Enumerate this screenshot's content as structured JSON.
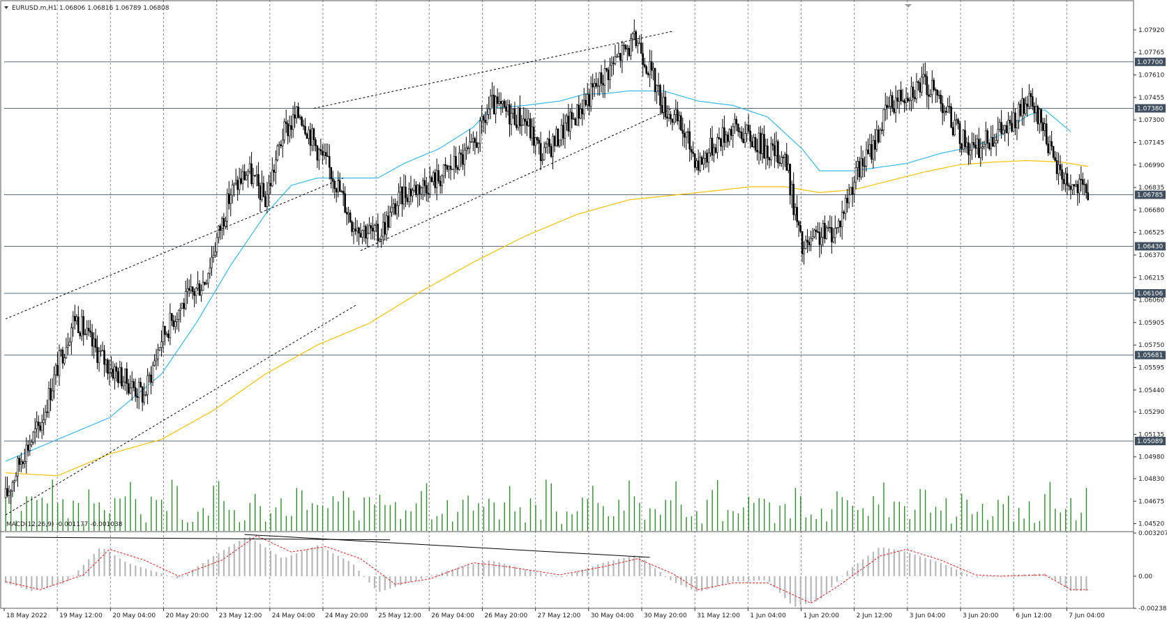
{
  "header": {
    "symbol": "EURUSD.m,H1",
    "ohlc": "1.06806 1.06816 1.06789 1.06808"
  },
  "macd_label": "MACD(12,26,9) -0.001177 -0.001038",
  "colors": {
    "grid": "#8c8c8c",
    "candle": "#000000",
    "ma_fast": "#38b8e8",
    "ma_slow": "#f2c200",
    "volume": "#2e8b2e",
    "level_line": "#5a6a7a",
    "level_tag": "#3f4f60",
    "macd_hist": "#b8b8b8",
    "macd_signal": "#e02020",
    "trendline": "#000000"
  },
  "chart_data": {
    "type": "candlestick",
    "symbol": "EURUSD.m",
    "timeframe": "H1",
    "ylim": [
      1.0447,
      1.0803
    ],
    "price_ticks": [
      "1.07920",
      "1.07765",
      "1.07610",
      "1.07455",
      "1.07300",
      "1.07145",
      "1.06990",
      "1.06835",
      "1.06680",
      "1.06525",
      "1.06370",
      "1.06215",
      "1.06060",
      "1.05905",
      "1.05750",
      "1.05595",
      "1.05440",
      "1.05290",
      "1.05135",
      "1.04980",
      "1.04830",
      "1.04675",
      "1.04520"
    ],
    "levels": [
      "1.07700",
      "1.07380",
      "1.06785",
      "1.06430",
      "1.06106",
      "1.05681",
      "1.05089"
    ],
    "time_labels": [
      "18 May 2022",
      "19 May 12:00",
      "20 May 04:00",
      "20 May 20:00",
      "23 May 12:00",
      "24 May 04:00",
      "24 May 20:00",
      "25 May 12:00",
      "26 May 04:00",
      "26 May 20:00",
      "27 May 12:00",
      "30 May 04:00",
      "30 May 20:00",
      "31 May 12:00",
      "1 Jun 04:00",
      "1 Jun 20:00",
      "2 Jun 12:00",
      "3 Jun 04:00",
      "3 Jun 20:00",
      "6 Jun 12:00",
      "7 Jun 04:00"
    ],
    "anchors": [
      [
        0,
        1.047
      ],
      [
        10,
        1.05
      ],
      [
        20,
        1.052
      ],
      [
        30,
        1.056
      ],
      [
        40,
        1.0595
      ],
      [
        50,
        1.0575
      ],
      [
        60,
        1.056
      ],
      [
        70,
        1.055
      ],
      [
        80,
        1.054
      ],
      [
        90,
        1.058
      ],
      [
        100,
        1.06
      ],
      [
        115,
        1.062
      ],
      [
        130,
        1.068
      ],
      [
        140,
        1.0695
      ],
      [
        150,
        1.0675
      ],
      [
        160,
        1.072
      ],
      [
        170,
        1.0735
      ],
      [
        180,
        1.071
      ],
      [
        190,
        1.069
      ],
      [
        200,
        1.066
      ],
      [
        215,
        1.065
      ],
      [
        230,
        1.068
      ],
      [
        250,
        1.069
      ],
      [
        270,
        1.071
      ],
      [
        280,
        1.074
      ],
      [
        300,
        1.073
      ],
      [
        310,
        1.0705
      ],
      [
        320,
        1.072
      ],
      [
        330,
        1.0735
      ],
      [
        345,
        1.076
      ],
      [
        355,
        1.0775
      ],
      [
        365,
        1.0785
      ],
      [
        370,
        1.077
      ],
      [
        380,
        1.074
      ],
      [
        390,
        1.0725
      ],
      [
        400,
        1.07
      ],
      [
        410,
        1.0715
      ],
      [
        420,
        1.0725
      ],
      [
        430,
        1.0718
      ],
      [
        440,
        1.071
      ],
      [
        450,
        1.0705
      ],
      [
        460,
        1.064
      ],
      [
        470,
        1.065
      ],
      [
        480,
        1.0655
      ],
      [
        490,
        1.069
      ],
      [
        500,
        1.071
      ],
      [
        510,
        1.074
      ],
      [
        520,
        1.075
      ],
      [
        530,
        1.0755
      ],
      [
        540,
        1.0745
      ],
      [
        550,
        1.072
      ],
      [
        560,
        1.0708
      ],
      [
        570,
        1.072
      ],
      [
        580,
        1.0725
      ],
      [
        590,
        1.0742
      ],
      [
        600,
        1.0725
      ],
      [
        605,
        1.07
      ],
      [
        615,
        1.0685
      ],
      [
        625,
        1.068
      ]
    ],
    "ma_fast": [
      [
        0,
        1.0495
      ],
      [
        30,
        1.051
      ],
      [
        60,
        1.0525
      ],
      [
        90,
        1.0555
      ],
      [
        110,
        1.059
      ],
      [
        130,
        1.063
      ],
      [
        150,
        1.0665
      ],
      [
        165,
        1.0685
      ],
      [
        180,
        1.069
      ],
      [
        200,
        1.069
      ],
      [
        215,
        1.069
      ],
      [
        230,
        1.07
      ],
      [
        250,
        1.071
      ],
      [
        270,
        1.0725
      ],
      [
        280,
        1.0738
      ],
      [
        300,
        1.074
      ],
      [
        320,
        1.0743
      ],
      [
        335,
        1.0748
      ],
      [
        345,
        1.0748
      ],
      [
        360,
        1.075
      ],
      [
        380,
        1.075
      ],
      [
        400,
        1.0743
      ],
      [
        420,
        1.074
      ],
      [
        440,
        1.0732
      ],
      [
        460,
        1.071
      ],
      [
        470,
        1.0695
      ],
      [
        490,
        1.0695
      ],
      [
        520,
        1.07
      ],
      [
        540,
        1.0707
      ],
      [
        560,
        1.0712
      ],
      [
        575,
        1.072
      ],
      [
        590,
        1.0733
      ],
      [
        600,
        1.0737
      ],
      [
        615,
        1.0722
      ]
    ],
    "ma_slow": [
      [
        0,
        1.0487
      ],
      [
        30,
        1.0485
      ],
      [
        60,
        1.05
      ],
      [
        90,
        1.051
      ],
      [
        120,
        1.053
      ],
      [
        150,
        1.0555
      ],
      [
        180,
        1.0575
      ],
      [
        210,
        1.059
      ],
      [
        240,
        1.0612
      ],
      [
        270,
        1.0632
      ],
      [
        300,
        1.065
      ],
      [
        330,
        1.0665
      ],
      [
        360,
        1.0675
      ],
      [
        400,
        1.068
      ],
      [
        430,
        1.0684
      ],
      [
        450,
        1.0684
      ],
      [
        470,
        1.068
      ],
      [
        490,
        1.0682
      ],
      [
        510,
        1.0688
      ],
      [
        530,
        1.0694
      ],
      [
        550,
        1.0699
      ],
      [
        570,
        1.0701
      ],
      [
        590,
        1.0702
      ],
      [
        610,
        1.0701
      ],
      [
        625,
        1.0698
      ]
    ],
    "volume_range": [
      0,
      1
    ],
    "macd_ylim": [
      -0.002383,
      0.003207
    ],
    "macd_ticks": [
      "0.003207",
      "0.00",
      "-0.002383"
    ],
    "macd_hist_anchors": [
      [
        0,
        -0.0005
      ],
      [
        15,
        -0.0011
      ],
      [
        35,
        -0.0005
      ],
      [
        55,
        0.0022
      ],
      [
        70,
        0.001
      ],
      [
        90,
        0.0002
      ],
      [
        100,
        -0.0002
      ],
      [
        120,
        0.0015
      ],
      [
        140,
        0.003
      ],
      [
        160,
        0.0013
      ],
      [
        180,
        0.0023
      ],
      [
        200,
        0.001
      ],
      [
        215,
        -0.0012
      ],
      [
        240,
        -0.0002
      ],
      [
        260,
        0.0006
      ],
      [
        280,
        0.0012
      ],
      [
        300,
        0.0005
      ],
      [
        320,
        -0.0001
      ],
      [
        345,
        0.001
      ],
      [
        365,
        0.0016
      ],
      [
        385,
        -0.0004
      ],
      [
        400,
        -0.0012
      ],
      [
        420,
        -0.0004
      ],
      [
        440,
        -0.0003
      ],
      [
        455,
        -0.0023
      ],
      [
        470,
        -0.0018
      ],
      [
        485,
        0.0003
      ],
      [
        505,
        0.0022
      ],
      [
        520,
        0.0018
      ],
      [
        540,
        0.001
      ],
      [
        560,
        -0.0001
      ],
      [
        580,
        0.0001
      ],
      [
        600,
        0.0002
      ],
      [
        615,
        -0.0011
      ]
    ],
    "macd_signal_anchors": [
      [
        0,
        -0.0004
      ],
      [
        20,
        -0.001
      ],
      [
        45,
        0.0001
      ],
      [
        60,
        0.002
      ],
      [
        80,
        0.0012
      ],
      [
        100,
        0.0
      ],
      [
        125,
        0.0012
      ],
      [
        145,
        0.003
      ],
      [
        165,
        0.0018
      ],
      [
        185,
        0.0022
      ],
      [
        205,
        0.0013
      ],
      [
        225,
        -0.0006
      ],
      [
        245,
        -0.0002
      ],
      [
        270,
        0.001
      ],
      [
        290,
        0.0007
      ],
      [
        320,
        0.0001
      ],
      [
        345,
        0.0007
      ],
      [
        365,
        0.0013
      ],
      [
        385,
        0.0002
      ],
      [
        400,
        -0.001
      ],
      [
        420,
        -0.0005
      ],
      [
        440,
        -0.0005
      ],
      [
        465,
        -0.002
      ],
      [
        480,
        -0.0008
      ],
      [
        505,
        0.0015
      ],
      [
        520,
        0.002
      ],
      [
        540,
        0.0012
      ],
      [
        560,
        0.0001
      ],
      [
        575,
        0.0
      ],
      [
        600,
        0.0001
      ],
      [
        615,
        -0.001
      ]
    ],
    "trendlines": [
      {
        "points": [
          [
            0,
            1.0593
          ],
          [
            195,
            1.069
          ]
        ],
        "style": "dashed"
      },
      {
        "points": [
          [
            0,
            1.0458
          ],
          [
            203,
            1.0603
          ]
        ],
        "style": "dashed"
      },
      {
        "points": [
          [
            178,
            1.0738
          ],
          [
            385,
            1.0791
          ]
        ],
        "style": "dashed"
      },
      {
        "points": [
          [
            205,
            1.064
          ],
          [
            385,
            1.0738
          ]
        ],
        "style": "dashed"
      }
    ],
    "macd_trendlines": [
      {
        "points": [
          [
            0,
            0.0029
          ],
          [
            222,
            0.0027
          ]
        ]
      },
      {
        "points": [
          [
            138,
            0.0031
          ],
          [
            372,
            0.0014
          ]
        ]
      }
    ]
  }
}
